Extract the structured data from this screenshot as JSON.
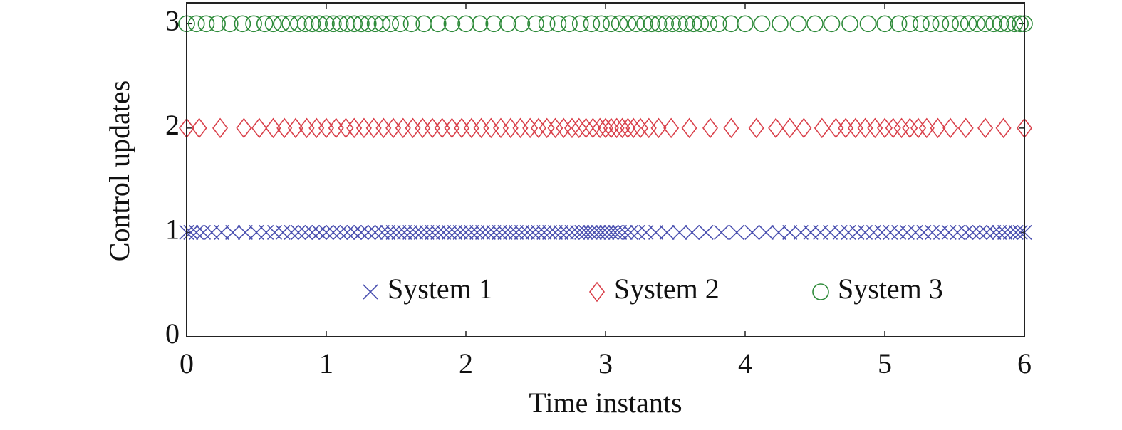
{
  "chart_data": {
    "type": "scatter",
    "xlabel": "Time instants",
    "ylabel": "Control updates",
    "xlim": [
      0,
      6
    ],
    "ylim": [
      0,
      3.2
    ],
    "xticks": [
      0,
      1,
      2,
      3,
      4,
      5,
      6
    ],
    "yticks": [
      0,
      1,
      2,
      3
    ],
    "series": [
      {
        "name": "System 1",
        "color": "#4a50b0",
        "marker": "x",
        "x": [
          0,
          0.03,
          0.07,
          0.12,
          0.18,
          0.25,
          0.33,
          0.42,
          0.5,
          0.57,
          0.63,
          0.69,
          0.75,
          0.8,
          0.85,
          0.9,
          0.95,
          1.0,
          1.05,
          1.1,
          1.15,
          1.2,
          1.25,
          1.3,
          1.35,
          1.4,
          1.44,
          1.48,
          1.52,
          1.56,
          1.6,
          1.64,
          1.68,
          1.72,
          1.76,
          1.8,
          1.84,
          1.88,
          1.92,
          1.96,
          2.0,
          2.04,
          2.08,
          2.12,
          2.16,
          2.2,
          2.24,
          2.28,
          2.32,
          2.36,
          2.4,
          2.44,
          2.48,
          2.52,
          2.56,
          2.6,
          2.64,
          2.68,
          2.72,
          2.76,
          2.8,
          2.83,
          2.86,
          2.89,
          2.92,
          2.95,
          2.98,
          3.01,
          3.04,
          3.07,
          3.1,
          3.14,
          3.18,
          3.23,
          3.29,
          3.36,
          3.44,
          3.53,
          3.62,
          3.72,
          3.83,
          3.94,
          4.05,
          4.15,
          4.24,
          4.32,
          4.4,
          4.47,
          4.54,
          4.61,
          4.68,
          4.74,
          4.8,
          4.86,
          4.92,
          4.98,
          5.04,
          5.1,
          5.16,
          5.22,
          5.28,
          5.34,
          5.4,
          5.46,
          5.52,
          5.58,
          5.63,
          5.68,
          5.73,
          5.78,
          5.82,
          5.86,
          5.9,
          5.94,
          5.97,
          6.0
        ],
        "values": [
          1,
          1,
          1,
          1,
          1,
          1,
          1,
          1,
          1,
          1,
          1,
          1,
          1,
          1,
          1,
          1,
          1,
          1,
          1,
          1,
          1,
          1,
          1,
          1,
          1,
          1,
          1,
          1,
          1,
          1,
          1,
          1,
          1,
          1,
          1,
          1,
          1,
          1,
          1,
          1,
          1,
          1,
          1,
          1,
          1,
          1,
          1,
          1,
          1,
          1,
          1,
          1,
          1,
          1,
          1,
          1,
          1,
          1,
          1,
          1,
          1,
          1,
          1,
          1,
          1,
          1,
          1,
          1,
          1,
          1,
          1,
          1,
          1,
          1,
          1,
          1,
          1,
          1,
          1,
          1,
          1,
          1,
          1,
          1,
          1,
          1,
          1,
          1,
          1,
          1,
          1,
          1,
          1,
          1,
          1,
          1,
          1,
          1,
          1,
          1,
          1,
          1,
          1,
          1,
          1,
          1,
          1,
          1,
          1,
          1,
          1,
          1,
          1,
          1,
          1,
          1
        ]
      },
      {
        "name": "System 2",
        "color": "#d9404a",
        "marker": "diamond",
        "x": [
          0,
          0.09,
          0.24,
          0.41,
          0.52,
          0.62,
          0.7,
          0.78,
          0.86,
          0.93,
          1.0,
          1.07,
          1.14,
          1.2,
          1.27,
          1.34,
          1.41,
          1.48,
          1.55,
          1.62,
          1.69,
          1.76,
          1.83,
          1.9,
          1.97,
          2.04,
          2.11,
          2.18,
          2.25,
          2.32,
          2.39,
          2.46,
          2.52,
          2.58,
          2.64,
          2.7,
          2.76,
          2.81,
          2.86,
          2.91,
          2.96,
          3.0,
          3.04,
          3.08,
          3.12,
          3.16,
          3.2,
          3.25,
          3.31,
          3.38,
          3.47,
          3.6,
          3.75,
          3.9,
          4.08,
          4.22,
          4.32,
          4.42,
          4.55,
          4.65,
          4.72,
          4.79,
          4.86,
          4.93,
          5.0,
          5.06,
          5.12,
          5.18,
          5.24,
          5.3,
          5.38,
          5.47,
          5.58,
          5.72,
          5.85,
          6.0
        ],
        "values": [
          2,
          2,
          2,
          2,
          2,
          2,
          2,
          2,
          2,
          2,
          2,
          2,
          2,
          2,
          2,
          2,
          2,
          2,
          2,
          2,
          2,
          2,
          2,
          2,
          2,
          2,
          2,
          2,
          2,
          2,
          2,
          2,
          2,
          2,
          2,
          2,
          2,
          2,
          2,
          2,
          2,
          2,
          2,
          2,
          2,
          2,
          2,
          2,
          2,
          2,
          2,
          2,
          2,
          2,
          2,
          2,
          2,
          2,
          2,
          2,
          2,
          2,
          2,
          2,
          2,
          2,
          2,
          2,
          2,
          2,
          2,
          2,
          2,
          2,
          2,
          2
        ]
      },
      {
        "name": "System 3",
        "color": "#2e8b3a",
        "marker": "circle",
        "x": [
          0,
          0.07,
          0.14,
          0.22,
          0.31,
          0.4,
          0.48,
          0.56,
          0.62,
          0.68,
          0.74,
          0.8,
          0.85,
          0.9,
          0.95,
          1.0,
          1.05,
          1.1,
          1.15,
          1.2,
          1.25,
          1.3,
          1.35,
          1.4,
          1.46,
          1.53,
          1.61,
          1.7,
          1.8,
          1.9,
          2.0,
          2.1,
          2.2,
          2.3,
          2.4,
          2.5,
          2.58,
          2.66,
          2.74,
          2.82,
          2.9,
          2.97,
          3.04,
          3.1,
          3.16,
          3.22,
          3.28,
          3.33,
          3.38,
          3.43,
          3.48,
          3.53,
          3.58,
          3.63,
          3.68,
          3.74,
          3.81,
          3.9,
          4.0,
          4.12,
          4.25,
          4.38,
          4.5,
          4.62,
          4.75,
          4.88,
          5.0,
          5.1,
          5.18,
          5.26,
          5.33,
          5.4,
          5.47,
          5.54,
          5.6,
          5.66,
          5.72,
          5.78,
          5.83,
          5.88,
          5.93,
          5.97,
          6.0
        ],
        "values": [
          3,
          3,
          3,
          3,
          3,
          3,
          3,
          3,
          3,
          3,
          3,
          3,
          3,
          3,
          3,
          3,
          3,
          3,
          3,
          3,
          3,
          3,
          3,
          3,
          3,
          3,
          3,
          3,
          3,
          3,
          3,
          3,
          3,
          3,
          3,
          3,
          3,
          3,
          3,
          3,
          3,
          3,
          3,
          3,
          3,
          3,
          3,
          3,
          3,
          3,
          3,
          3,
          3,
          3,
          3,
          3,
          3,
          3,
          3,
          3,
          3,
          3,
          3,
          3,
          3,
          3,
          3,
          3,
          3,
          3,
          3,
          3,
          3,
          3,
          3,
          3,
          3,
          3,
          3,
          3,
          3,
          3,
          3
        ]
      }
    ]
  }
}
